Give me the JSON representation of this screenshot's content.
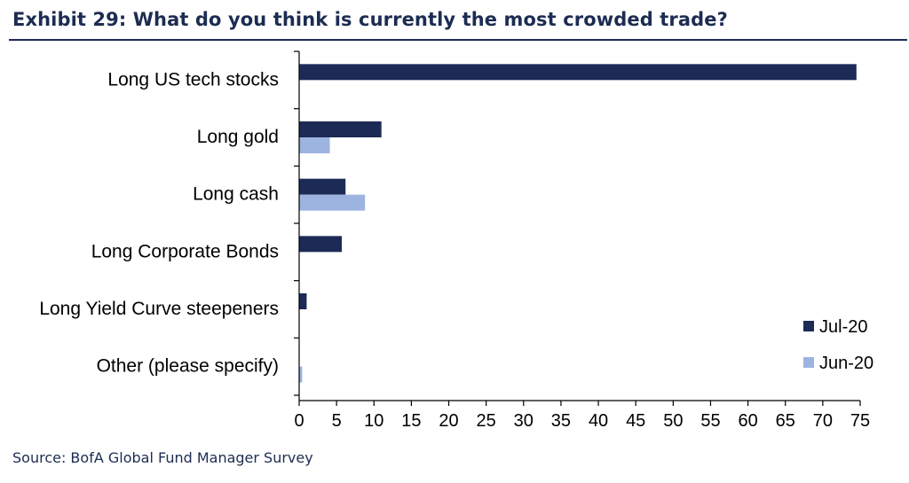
{
  "header": {
    "title": "Exhibit 29: What do you think is currently the most crowded trade?"
  },
  "footer": {
    "source": "Source: BofA Global Fund Manager Survey"
  },
  "chart_data": {
    "type": "bar",
    "orientation": "horizontal",
    "categories": [
      "Long US tech stocks",
      "Long gold",
      "Long cash",
      "Long Corporate Bonds",
      "Long Yield Curve steepeners",
      "Other (please specify)"
    ],
    "series": [
      {
        "name": "Jul-20",
        "color": "#1c2a56",
        "values": [
          74.5,
          11.0,
          6.2,
          5.7,
          1.0,
          0.0
        ]
      },
      {
        "name": "Jun-20",
        "color": "#9db3e0",
        "values": [
          null,
          4.1,
          8.8,
          null,
          null,
          0.4
        ]
      }
    ],
    "xlim": [
      0,
      75
    ],
    "xticks": [
      0,
      5,
      10,
      15,
      20,
      25,
      30,
      35,
      40,
      45,
      50,
      55,
      60,
      65,
      70,
      75
    ],
    "legend": "bottom-right",
    "grid": false
  }
}
